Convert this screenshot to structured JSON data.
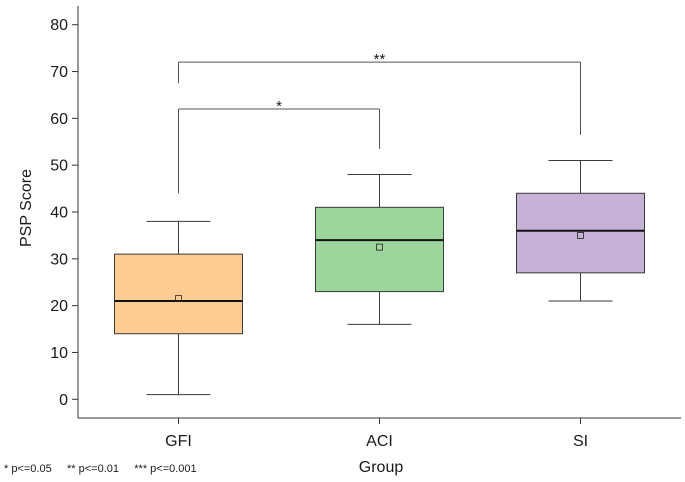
{
  "chart_data": {
    "type": "box",
    "xlabel": "Group",
    "ylabel": "PSP Score",
    "ylim": [
      -4,
      84
    ],
    "yticks": [
      0,
      10,
      20,
      30,
      40,
      50,
      60,
      70,
      80
    ],
    "grid": false,
    "legend": "none",
    "categories": [
      "GFI",
      "ACI",
      "SI"
    ],
    "boxes": [
      {
        "category": "GFI",
        "whisker_low": 1,
        "q1": 14,
        "median": 21,
        "q3": 31,
        "whisker_high": 38,
        "mean": 21.5,
        "color": "#ffcc94"
      },
      {
        "category": "ACI",
        "whisker_low": 16,
        "q1": 23,
        "median": 34,
        "q3": 41,
        "whisker_high": 48,
        "mean": 32.5,
        "color": "#9cd69c"
      },
      {
        "category": "SI",
        "whisker_low": 21,
        "q1": 27,
        "median": 36,
        "q3": 44,
        "whisker_high": 51,
        "mean": 35,
        "color": "#c6b2d6"
      }
    ],
    "significance": [
      {
        "from": "GFI",
        "to": "ACI",
        "label": "*",
        "y": 62,
        "drop_from": 44,
        "drop_to": 53.5
      },
      {
        "from": "GFI",
        "to": "SI",
        "label": "**",
        "y": 72,
        "drop_from": 67.5,
        "drop_to": 56.5
      }
    ],
    "footnote": "* p<=0.05     ** p<=0.01     *** p<=0.001"
  }
}
